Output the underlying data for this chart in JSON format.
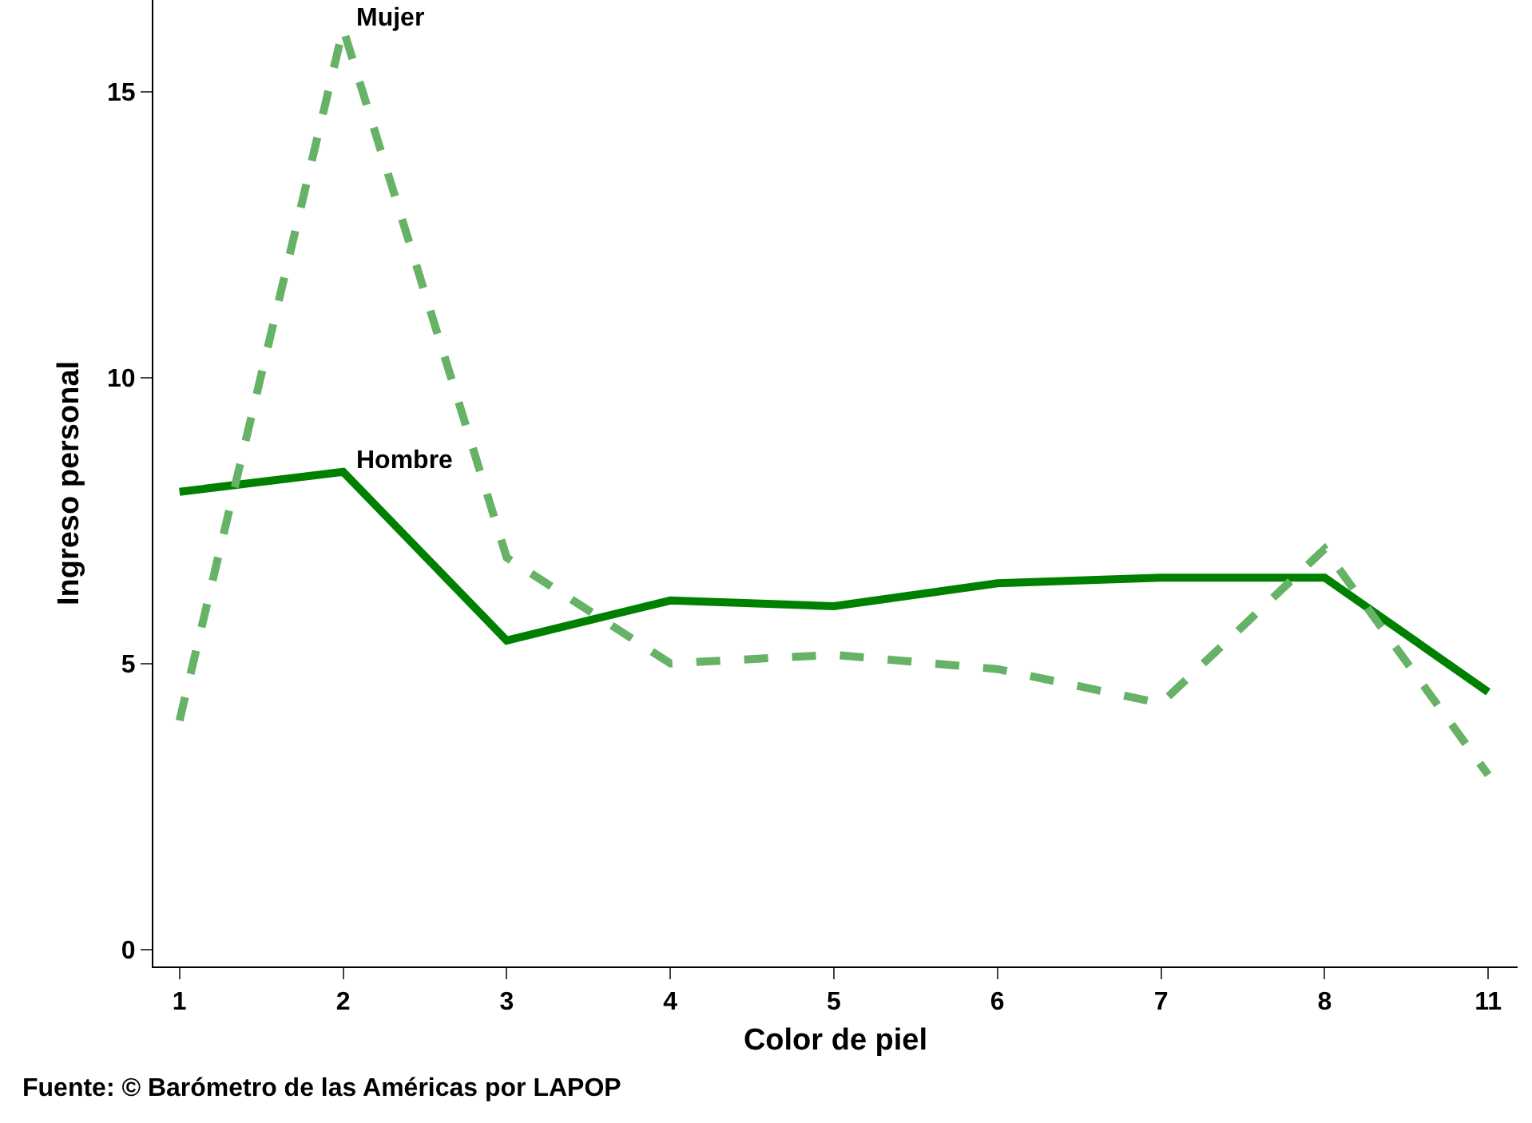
{
  "chart_data": {
    "type": "line",
    "xlabel": "Color de piel",
    "ylabel": "Ingreso personal",
    "categories": [
      "1",
      "2",
      "3",
      "4",
      "5",
      "6",
      "7",
      "8",
      "11"
    ],
    "series": [
      {
        "name": "Hombre",
        "color": "#008000",
        "line_style": "solid",
        "values": [
          8.0,
          8.35,
          5.4,
          6.1,
          6.0,
          6.4,
          6.5,
          6.5,
          4.5
        ]
      },
      {
        "name": "Mujer",
        "color": "#66b266",
        "line_style": "dashed",
        "values": [
          4.0,
          16.1,
          6.85,
          5.0,
          5.15,
          4.9,
          4.3,
          7.0,
          3.05
        ]
      }
    ],
    "ylim": [
      -0.3,
      16.6
    ],
    "yticks": [
      0,
      5,
      10,
      15
    ],
    "legend": false,
    "marker": "none",
    "annotations": [
      "Fuente: © Barómetro de las Américas por LAPOP"
    ]
  }
}
